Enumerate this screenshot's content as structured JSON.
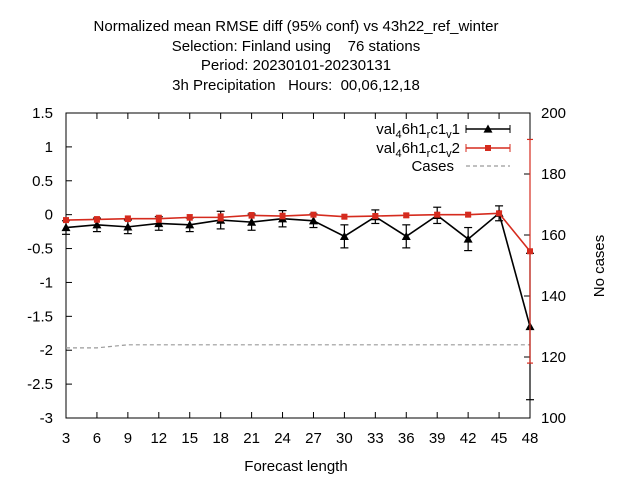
{
  "chart_data": {
    "type": "line",
    "title_lines": [
      "Normalized mean RMSE diff (95% conf) vs 43h22_ref_winter",
      "Selection: Finland using    76 stations",
      "Period: 20230101-20230131",
      "3h Precipitation   Hours:  00,06,12,18"
    ],
    "xlabel": "Forecast length",
    "ylabel": "",
    "y2label": "No cases",
    "x": [
      3,
      6,
      9,
      12,
      15,
      18,
      21,
      24,
      27,
      30,
      33,
      36,
      39,
      42,
      45,
      48
    ],
    "xticks": [
      "3",
      "6",
      "9",
      "12",
      "15",
      "18",
      "21",
      "24",
      "27",
      "30",
      "33",
      "36",
      "39",
      "42",
      "45",
      "48"
    ],
    "xlim": [
      3,
      48
    ],
    "ylim": [
      -3,
      1.5
    ],
    "yticks": [
      "-3",
      "-2.5",
      "-2",
      "-1.5",
      "-1",
      "-0.5",
      "0",
      "0.5",
      "1",
      "1.5"
    ],
    "y2lim": [
      100,
      200
    ],
    "y2ticks": [
      "100",
      "120",
      "140",
      "160",
      "180",
      "200"
    ],
    "series": [
      {
        "name": "val_46h1_rc1_v1",
        "color": "#000000",
        "marker": "triangle",
        "values": [
          -0.19,
          -0.15,
          -0.18,
          -0.13,
          -0.15,
          -0.08,
          -0.11,
          -0.06,
          -0.09,
          -0.32,
          -0.03,
          -0.32,
          -0.01,
          -0.36,
          0.02,
          -1.65
        ],
        "err": [
          0.1,
          0.1,
          0.1,
          0.1,
          0.1,
          0.13,
          0.12,
          0.12,
          0.1,
          0.17,
          0.1,
          0.17,
          0.12,
          0.17,
          0.11,
          1.08
        ]
      },
      {
        "name": "val_46h1_rc1_v2",
        "color": "#d52b1e",
        "marker": "square",
        "values": [
          -0.08,
          -0.07,
          -0.06,
          -0.06,
          -0.04,
          -0.04,
          -0.01,
          -0.02,
          0.0,
          -0.03,
          -0.02,
          -0.01,
          0.0,
          0.0,
          0.02,
          -0.54
        ],
        "err": [
          0.03,
          0.04,
          0.04,
          0.05,
          0.04,
          0.05,
          0.04,
          0.04,
          0.03,
          0.03,
          0.03,
          0.03,
          0.03,
          0.03,
          0.03,
          1.65
        ]
      },
      {
        "name": "Cases",
        "color": "#9a9a9a",
        "dash": true,
        "axis": "y2",
        "values": [
          123,
          123,
          124,
          124,
          124,
          124,
          124,
          124,
          124,
          124,
          124,
          124,
          124,
          124,
          124,
          124
        ]
      }
    ],
    "grid": false,
    "legend": "top-right"
  }
}
